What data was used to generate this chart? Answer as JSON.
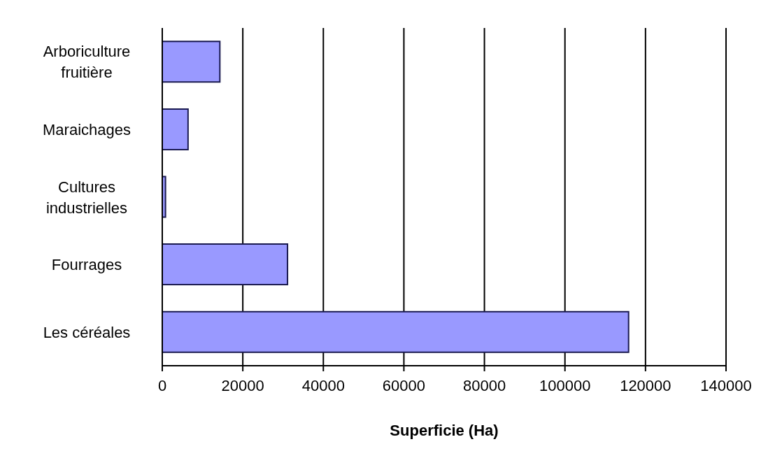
{
  "chart_data": {
    "type": "bar",
    "orientation": "horizontal",
    "xlabel": "Superficie (Ha)",
    "categories": [
      "Arboriculture fruitière",
      "Maraichages",
      "Cultures industrielles",
      "Fourrages",
      "Les céréales"
    ],
    "values": [
      14300,
      6400,
      800,
      31100,
      115800
    ],
    "color": "#9999ff",
    "xlim": [
      0,
      140000
    ],
    "xticks": [
      0,
      20000,
      40000,
      60000,
      80000,
      100000,
      120000,
      140000
    ],
    "grid": "x"
  }
}
